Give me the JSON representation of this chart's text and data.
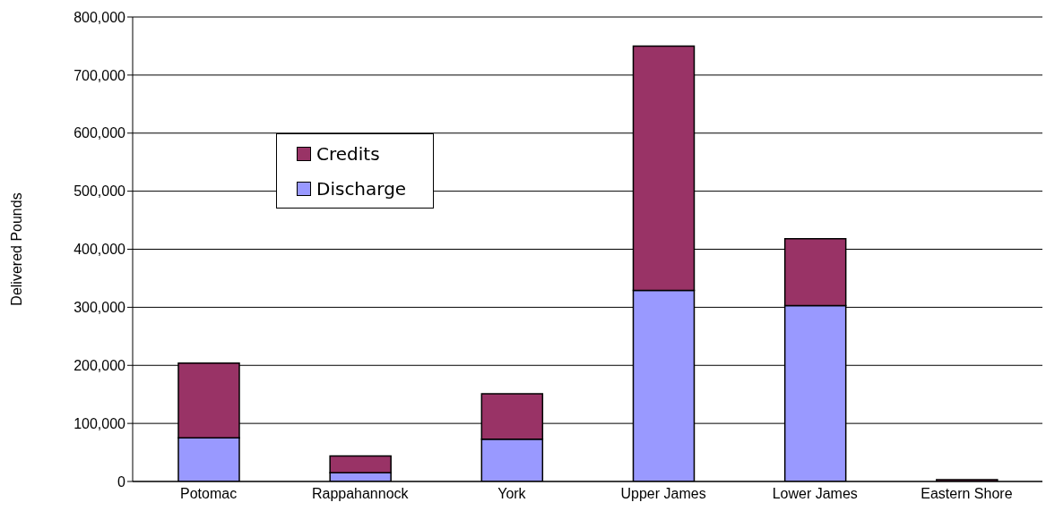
{
  "chart_data": {
    "type": "bar",
    "ylabel": "Delivered Pounds",
    "categories": [
      "Potomac",
      "Rappahannock",
      "York",
      "Upper James",
      "Lower James",
      "Eastern Shore"
    ],
    "series": [
      {
        "name": "Discharge",
        "color": "#9999ff",
        "values": [
          75000,
          15000,
          73000,
          329000,
          303000,
          null
        ]
      },
      {
        "name": "Credits",
        "color": "#993366",
        "values": [
          129000,
          29000,
          78000,
          421000,
          115000,
          3000
        ]
      }
    ],
    "stacked": true,
    "ylim": [
      0,
      800000
    ],
    "yticks": [
      0,
      {
        "value": 100000,
        "label": "100,000"
      },
      {
        "value": 200000,
        "label": "200,000"
      },
      {
        "value": 300000,
        "label": "300,000"
      },
      {
        "value": 400000,
        "label": "400,000"
      },
      {
        "value": 500000,
        "label": "500,000"
      },
      {
        "value": 600000,
        "label": "600,000"
      },
      {
        "value": 700000,
        "label": "700,000"
      },
      {
        "value": 800000,
        "label": "800,000"
      }
    ],
    "grid": "y",
    "legend": "top left"
  }
}
